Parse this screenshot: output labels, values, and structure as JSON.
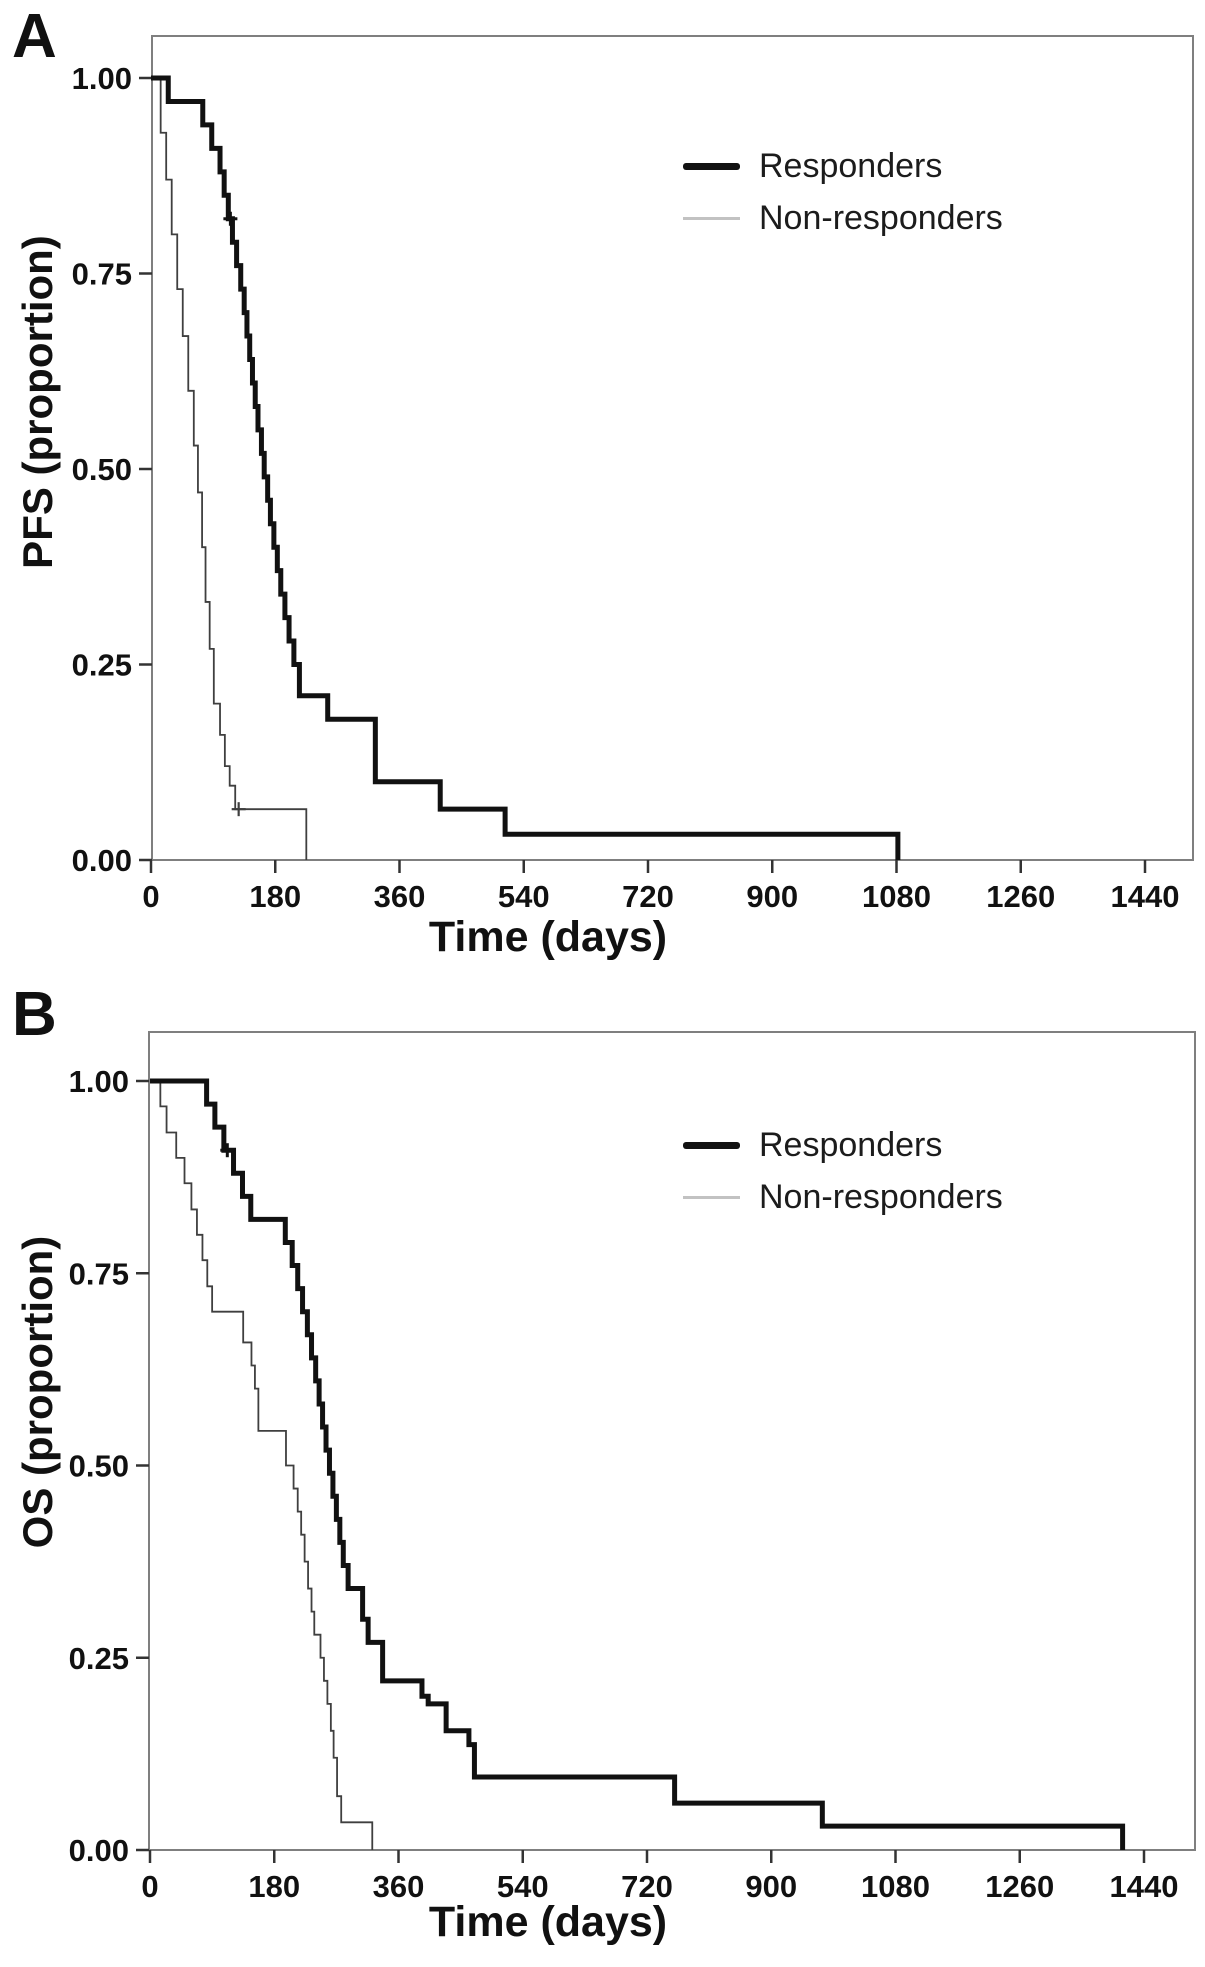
{
  "figure_type": "Kaplan-Meier survival curves, two panels",
  "accent_colors": {
    "curve_dark": "#111111",
    "curve_thin": "#3f3f3f",
    "axis_gray": "#7f7f7f",
    "legend_thin_sample": "#c2c2c2"
  },
  "chart_data": [
    {
      "type": "line",
      "subtype": "kaplan-meier-step",
      "panel": "A",
      "title": "",
      "xlabel": "Time (days)",
      "ylabel": "PFS (proportion)",
      "xlim": [
        0,
        1512
      ],
      "ylim": [
        0,
        1.0
      ],
      "xticks": [
        0,
        180,
        360,
        540,
        720,
        900,
        1080,
        1260,
        1440
      ],
      "yticks": [
        {
          "value": 1.0,
          "label": "1.00"
        },
        {
          "value": 0.75,
          "label": "0.75"
        },
        {
          "value": 0.5,
          "label": "0.50"
        },
        {
          "value": 0.25,
          "label": "0.25"
        },
        {
          "value": 0.0,
          "label": "0.00"
        }
      ],
      "grid": false,
      "legend_position": "top-right-inside",
      "series": [
        {
          "name": "Responders",
          "style": "thick",
          "color": "#111111",
          "points": [
            [
              0,
              1.0
            ],
            [
              25,
              0.97
            ],
            [
              75,
              0.94
            ],
            [
              88,
              0.91
            ],
            [
              100,
              0.88
            ],
            [
              106,
              0.85
            ],
            [
              112,
              0.82
            ],
            [
              118,
              0.79
            ],
            [
              124,
              0.76
            ],
            [
              130,
              0.73
            ],
            [
              135,
              0.7
            ],
            [
              139,
              0.67
            ],
            [
              143,
              0.64
            ],
            [
              147,
              0.61
            ],
            [
              151,
              0.58
            ],
            [
              155,
              0.55
            ],
            [
              160,
              0.52
            ],
            [
              164,
              0.49
            ],
            [
              169,
              0.46
            ],
            [
              173,
              0.43
            ],
            [
              178,
              0.4
            ],
            [
              183,
              0.37
            ],
            [
              188,
              0.34
            ],
            [
              194,
              0.31
            ],
            [
              200,
              0.28
            ],
            [
              207,
              0.25
            ],
            [
              215,
              0.21
            ],
            [
              256,
              0.18
            ],
            [
              325,
              0.1
            ],
            [
              419,
              0.065
            ],
            [
              513,
              0.033
            ],
            [
              1082,
              0.0
            ]
          ],
          "censored": [
            [
              115,
              0.82
            ]
          ]
        },
        {
          "name": "Non-responders",
          "style": "thin",
          "color": "#3f3f3f",
          "points": [
            [
              0,
              1.0
            ],
            [
              14,
              0.93
            ],
            [
              22,
              0.87
            ],
            [
              30,
              0.8
            ],
            [
              38,
              0.73
            ],
            [
              46,
              0.67
            ],
            [
              54,
              0.6
            ],
            [
              62,
              0.53
            ],
            [
              68,
              0.47
            ],
            [
              74,
              0.4
            ],
            [
              79,
              0.33
            ],
            [
              85,
              0.27
            ],
            [
              91,
              0.2
            ],
            [
              100,
              0.16
            ],
            [
              107,
              0.12
            ],
            [
              114,
              0.095
            ],
            [
              122,
              0.065
            ],
            [
              225,
              0.0
            ]
          ],
          "censored": [
            [
              127,
              0.065
            ]
          ]
        }
      ]
    },
    {
      "type": "line",
      "subtype": "kaplan-meier-step",
      "panel": "B",
      "title": "",
      "xlabel": "Time (days)",
      "ylabel": "OS (proportion)",
      "xlim": [
        0,
        1512
      ],
      "ylim": [
        0,
        1.0
      ],
      "xticks": [
        0,
        180,
        360,
        540,
        720,
        900,
        1080,
        1260,
        1440
      ],
      "yticks": [
        {
          "value": 1.0,
          "label": "1.00"
        },
        {
          "value": 0.75,
          "label": "0.75"
        },
        {
          "value": 0.5,
          "label": "0.50"
        },
        {
          "value": 0.25,
          "label": "0.25"
        },
        {
          "value": 0.0,
          "label": "0.00"
        }
      ],
      "grid": false,
      "legend_position": "top-right-inside",
      "series": [
        {
          "name": "Responders",
          "style": "thick",
          "color": "#111111",
          "points": [
            [
              0,
              1.0
            ],
            [
              82,
              0.97
            ],
            [
              94,
              0.94
            ],
            [
              107,
              0.91
            ],
            [
              121,
              0.88
            ],
            [
              134,
              0.85
            ],
            [
              146,
              0.82
            ],
            [
              196,
              0.79
            ],
            [
              206,
              0.76
            ],
            [
              214,
              0.73
            ],
            [
              221,
              0.7
            ],
            [
              228,
              0.67
            ],
            [
              234,
              0.64
            ],
            [
              240,
              0.61
            ],
            [
              245,
              0.58
            ],
            [
              250,
              0.55
            ],
            [
              255,
              0.52
            ],
            [
              260,
              0.49
            ],
            [
              265,
              0.46
            ],
            [
              270,
              0.43
            ],
            [
              275,
              0.4
            ],
            [
              280,
              0.37
            ],
            [
              287,
              0.34
            ],
            [
              308,
              0.3
            ],
            [
              316,
              0.27
            ],
            [
              337,
              0.22
            ],
            [
              394,
              0.2
            ],
            [
              403,
              0.19
            ],
            [
              429,
              0.155
            ],
            [
              462,
              0.137
            ],
            [
              470,
              0.095
            ],
            [
              760,
              0.061
            ],
            [
              974,
              0.031
            ],
            [
              1409,
              0.0
            ]
          ],
          "censored": [
            [
              112,
              0.91
            ]
          ]
        },
        {
          "name": "Non-responders",
          "style": "thin",
          "color": "#3f3f3f",
          "points": [
            [
              0,
              1.0
            ],
            [
              15,
              0.967
            ],
            [
              24,
              0.933
            ],
            [
              38,
              0.9
            ],
            [
              50,
              0.867
            ],
            [
              60,
              0.833
            ],
            [
              68,
              0.8
            ],
            [
              76,
              0.767
            ],
            [
              83,
              0.733
            ],
            [
              90,
              0.7
            ],
            [
              135,
              0.66
            ],
            [
              147,
              0.63
            ],
            [
              152,
              0.6
            ],
            [
              157,
              0.545
            ],
            [
              197,
              0.5
            ],
            [
              208,
              0.47
            ],
            [
              214,
              0.44
            ],
            [
              219,
              0.41
            ],
            [
              224,
              0.375
            ],
            [
              229,
              0.34
            ],
            [
              234,
              0.31
            ],
            [
              238,
              0.28
            ],
            [
              247,
              0.25
            ],
            [
              252,
              0.22
            ],
            [
              257,
              0.19
            ],
            [
              262,
              0.155
            ],
            [
              266,
              0.12
            ],
            [
              271,
              0.07
            ],
            [
              277,
              0.036
            ],
            [
              322,
              0.0
            ]
          ],
          "censored": []
        }
      ]
    }
  ]
}
